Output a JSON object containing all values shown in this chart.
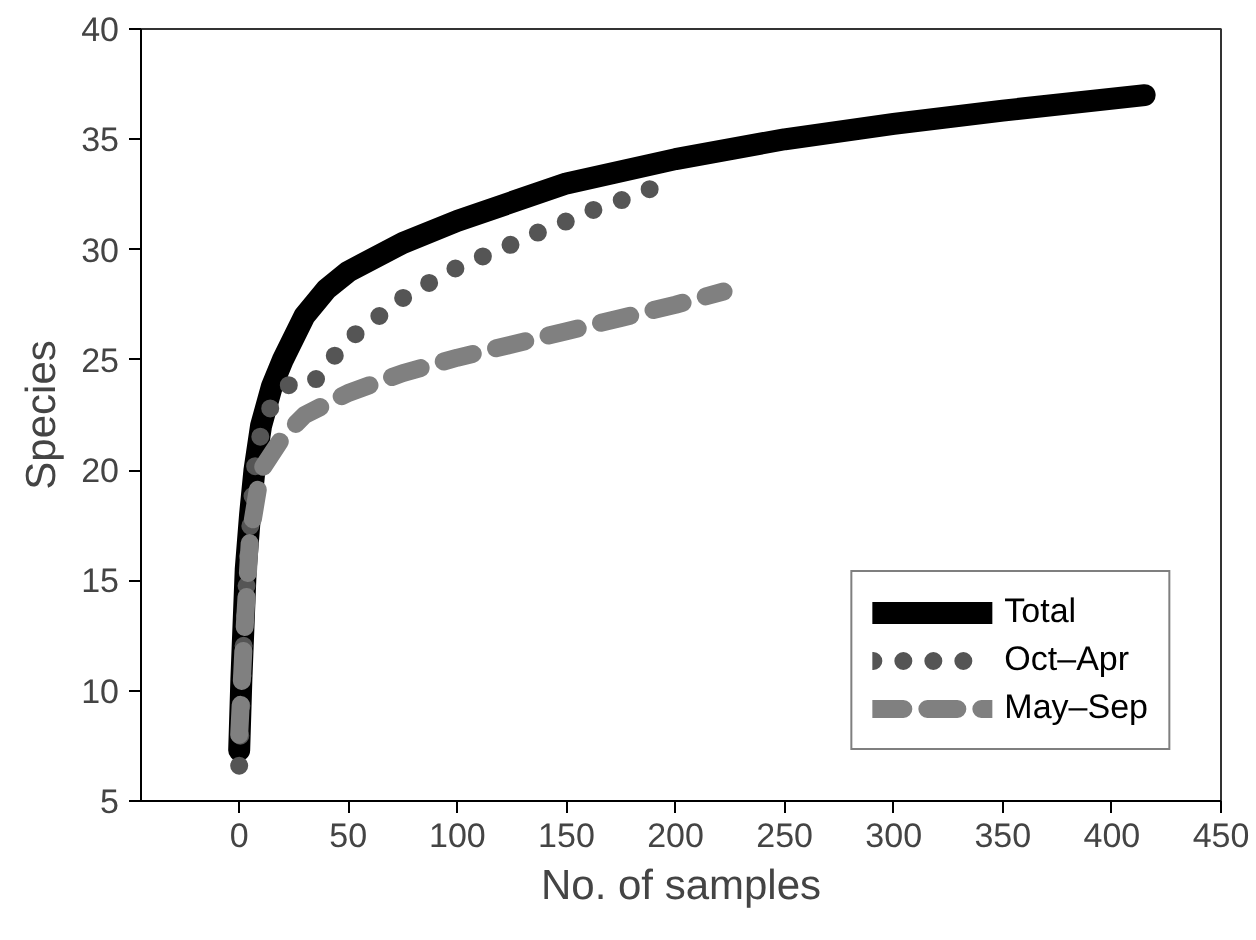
{
  "chart_data": {
    "type": "line",
    "xlabel": "No. of samples",
    "ylabel": "Species",
    "xlim": [
      -45,
      450
    ],
    "xticks": [
      0,
      50,
      100,
      150,
      200,
      250,
      300,
      350,
      400,
      450
    ],
    "ylim": [
      5,
      40
    ],
    "yticks": [
      5,
      10,
      15,
      20,
      25,
      30,
      35,
      40
    ],
    "grid": false,
    "legend": "bottom right",
    "series": [
      {
        "name": "Total",
        "color": "#000000",
        "line_style": "solid",
        "x": [
          0,
          1,
          2,
          3,
          5,
          7,
          10,
          15,
          20,
          30,
          40,
          50,
          75,
          100,
          150,
          200,
          250,
          300,
          350,
          415
        ],
        "values": [
          7.3,
          10.5,
          13,
          15.5,
          18,
          20,
          22,
          23.8,
          25,
          27,
          28.2,
          29,
          30.3,
          31.3,
          33,
          34.1,
          35,
          35.7,
          36.3,
          37
        ]
      },
      {
        "name": "Oct–Apr",
        "color": "#555555",
        "line_style": "dotted",
        "x": [
          0,
          2,
          4,
          7,
          10,
          15,
          25,
          35,
          43,
          51,
          61,
          70,
          80,
          91,
          102,
          112,
          124,
          135,
          146,
          157,
          168,
          180,
          192
        ],
        "values": [
          6.6,
          12,
          16,
          20,
          21.7,
          23,
          24.1,
          24.1,
          25.1,
          26.0,
          26.7,
          27.5,
          28.1,
          28.7,
          29.3,
          29.7,
          30.2,
          30.7,
          31.1,
          31.6,
          32.0,
          32.4,
          32.9
        ]
      },
      {
        "name": "May–Sep",
        "color": "#808080",
        "line_style": "dashed",
        "x": [
          0,
          2,
          5,
          10,
          20,
          30,
          50,
          75,
          100,
          125,
          150,
          175,
          200,
          222
        ],
        "values": [
          8,
          12,
          17,
          20,
          21.5,
          22.5,
          23.5,
          24.4,
          25.1,
          25.7,
          26.3,
          26.9,
          27.5,
          28.1
        ]
      }
    ]
  }
}
